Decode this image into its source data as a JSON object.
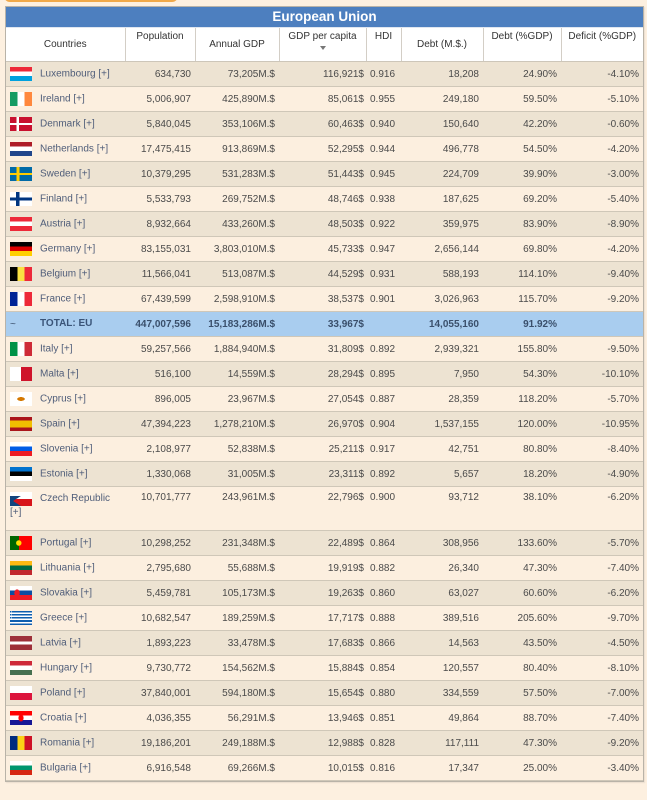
{
  "title": "European Union",
  "columns": [
    {
      "key": "country",
      "label": "Countries"
    },
    {
      "key": "population",
      "label": "Population"
    },
    {
      "key": "annual_gdp",
      "label": "Annual GDP"
    },
    {
      "key": "gdp_per_capita",
      "label": "GDP per capita",
      "sorted": "descending"
    },
    {
      "key": "hdi",
      "label": "HDI"
    },
    {
      "key": "debt",
      "label": "Debt (M.$.)"
    },
    {
      "key": "debt_pct",
      "label": "Debt (%GDP)"
    },
    {
      "key": "deficit",
      "label": "Deficit (%GDP)"
    }
  ],
  "rows": [
    {
      "country": "Luxembourg [+]",
      "flag": "luxembourg-flag",
      "population": "634,730",
      "annual_gdp": "73,205M.$",
      "gdp_per_capita": "116,921$",
      "hdi": "0.916",
      "debt": "18,208",
      "debt_pct": "24.90%",
      "deficit": "-4.10%"
    },
    {
      "country": "Ireland [+]",
      "flag": "ireland-flag",
      "population": "5,006,907",
      "annual_gdp": "425,890M.$",
      "gdp_per_capita": "85,061$",
      "hdi": "0.955",
      "debt": "249,180",
      "debt_pct": "59.50%",
      "deficit": "-5.10%"
    },
    {
      "country": "Denmark [+]",
      "flag": "denmark-flag",
      "population": "5,840,045",
      "annual_gdp": "353,106M.$",
      "gdp_per_capita": "60,463$",
      "hdi": "0.940",
      "debt": "150,640",
      "debt_pct": "42.20%",
      "deficit": "-0.60%"
    },
    {
      "country": "Netherlands [+]",
      "flag": "netherlands-flag",
      "population": "17,475,415",
      "annual_gdp": "913,869M.$",
      "gdp_per_capita": "52,295$",
      "hdi": "0.944",
      "debt": "496,778",
      "debt_pct": "54.50%",
      "deficit": "-4.20%"
    },
    {
      "country": "Sweden [+]",
      "flag": "sweden-flag",
      "population": "10,379,295",
      "annual_gdp": "531,283M.$",
      "gdp_per_capita": "51,443$",
      "hdi": "0.945",
      "debt": "224,709",
      "debt_pct": "39.90%",
      "deficit": "-3.00%"
    },
    {
      "country": "Finland [+]",
      "flag": "finland-flag",
      "population": "5,533,793",
      "annual_gdp": "269,752M.$",
      "gdp_per_capita": "48,746$",
      "hdi": "0.938",
      "debt": "187,625",
      "debt_pct": "69.20%",
      "deficit": "-5.40%"
    },
    {
      "country": "Austria [+]",
      "flag": "austria-flag",
      "population": "8,932,664",
      "annual_gdp": "433,260M.$",
      "gdp_per_capita": "48,503$",
      "hdi": "0.922",
      "debt": "359,975",
      "debt_pct": "83.90%",
      "deficit": "-8.90%"
    },
    {
      "country": "Germany [+]",
      "flag": "germany-flag",
      "population": "83,155,031",
      "annual_gdp": "3,803,010M.$",
      "gdp_per_capita": "45,733$",
      "hdi": "0.947",
      "debt": "2,656,144",
      "debt_pct": "69.80%",
      "deficit": "-4.20%"
    },
    {
      "country": "Belgium [+]",
      "flag": "belgium-flag",
      "population": "11,566,041",
      "annual_gdp": "513,087M.$",
      "gdp_per_capita": "44,529$",
      "hdi": "0.931",
      "debt": "588,193",
      "debt_pct": "114.10%",
      "deficit": "-9.40%"
    },
    {
      "country": "France [+]",
      "flag": "france-flag",
      "population": "67,439,599",
      "annual_gdp": "2,598,910M.$",
      "gdp_per_capita": "38,537$",
      "hdi": "0.901",
      "debt": "3,026,963",
      "debt_pct": "115.70%",
      "deficit": "-9.20%"
    },
    {
      "total": true,
      "marker": "~",
      "country": "TOTAL: EU",
      "population": "447,007,596",
      "annual_gdp": "15,183,286M.$",
      "gdp_per_capita": "33,967$",
      "hdi": "",
      "debt": "14,055,160",
      "debt_pct": "91.92%",
      "deficit": ""
    },
    {
      "country": "Italy [+]",
      "flag": "italy-flag",
      "population": "59,257,566",
      "annual_gdp": "1,884,940M.$",
      "gdp_per_capita": "31,809$",
      "hdi": "0.892",
      "debt": "2,939,321",
      "debt_pct": "155.80%",
      "deficit": "-9.50%"
    },
    {
      "country": "Malta [+]",
      "flag": "malta-flag",
      "population": "516,100",
      "annual_gdp": "14,559M.$",
      "gdp_per_capita": "28,294$",
      "hdi": "0.895",
      "debt": "7,950",
      "debt_pct": "54.30%",
      "deficit": "-10.10%"
    },
    {
      "country": "Cyprus [+]",
      "flag": "cyprus-flag",
      "population": "896,005",
      "annual_gdp": "23,967M.$",
      "gdp_per_capita": "27,054$",
      "hdi": "0.887",
      "debt": "28,359",
      "debt_pct": "118.20%",
      "deficit": "-5.70%"
    },
    {
      "country": "Spain [+]",
      "flag": "spain-flag",
      "population": "47,394,223",
      "annual_gdp": "1,278,210M.$",
      "gdp_per_capita": "26,970$",
      "hdi": "0.904",
      "debt": "1,537,155",
      "debt_pct": "120.00%",
      "deficit": "-10.95%"
    },
    {
      "country": "Slovenia [+]",
      "flag": "slovenia-flag",
      "population": "2,108,977",
      "annual_gdp": "52,838M.$",
      "gdp_per_capita": "25,211$",
      "hdi": "0.917",
      "debt": "42,751",
      "debt_pct": "80.80%",
      "deficit": "-8.40%"
    },
    {
      "country": "Estonia [+]",
      "flag": "estonia-flag",
      "population": "1,330,068",
      "annual_gdp": "31,005M.$",
      "gdp_per_capita": "23,311$",
      "hdi": "0.892",
      "debt": "5,657",
      "debt_pct": "18.20%",
      "deficit": "-4.90%"
    },
    {
      "country": "Czech Republic [+]",
      "flag": "czech-republic-flag",
      "tall": true,
      "population": "10,701,777",
      "annual_gdp": "243,961M.$",
      "gdp_per_capita": "22,796$",
      "hdi": "0.900",
      "debt": "93,712",
      "debt_pct": "38.10%",
      "deficit": "-6.20%"
    },
    {
      "country": "Portugal [+]",
      "flag": "portugal-flag",
      "population": "10,298,252",
      "annual_gdp": "231,348M.$",
      "gdp_per_capita": "22,489$",
      "hdi": "0.864",
      "debt": "308,956",
      "debt_pct": "133.60%",
      "deficit": "-5.70%"
    },
    {
      "country": "Lithuania [+]",
      "flag": "lithuania-flag",
      "population": "2,795,680",
      "annual_gdp": "55,688M.$",
      "gdp_per_capita": "19,919$",
      "hdi": "0.882",
      "debt": "26,340",
      "debt_pct": "47.30%",
      "deficit": "-7.40%"
    },
    {
      "country": "Slovakia [+]",
      "flag": "slovakia-flag",
      "population": "5,459,781",
      "annual_gdp": "105,173M.$",
      "gdp_per_capita": "19,263$",
      "hdi": "0.860",
      "debt": "63,027",
      "debt_pct": "60.60%",
      "deficit": "-6.20%"
    },
    {
      "country": "Greece [+]",
      "flag": "greece-flag",
      "population": "10,682,547",
      "annual_gdp": "189,259M.$",
      "gdp_per_capita": "17,717$",
      "hdi": "0.888",
      "debt": "389,516",
      "debt_pct": "205.60%",
      "deficit": "-9.70%"
    },
    {
      "country": "Latvia [+]",
      "flag": "latvia-flag",
      "population": "1,893,223",
      "annual_gdp": "33,478M.$",
      "gdp_per_capita": "17,683$",
      "hdi": "0.866",
      "debt": "14,563",
      "debt_pct": "43.50%",
      "deficit": "-4.50%"
    },
    {
      "country": "Hungary [+]",
      "flag": "hungary-flag",
      "population": "9,730,772",
      "annual_gdp": "154,562M.$",
      "gdp_per_capita": "15,884$",
      "hdi": "0.854",
      "debt": "120,557",
      "debt_pct": "80.40%",
      "deficit": "-8.10%"
    },
    {
      "country": "Poland [+]",
      "flag": "poland-flag",
      "population": "37,840,001",
      "annual_gdp": "594,180M.$",
      "gdp_per_capita": "15,654$",
      "hdi": "0.880",
      "debt": "334,559",
      "debt_pct": "57.50%",
      "deficit": "-7.00%"
    },
    {
      "country": "Croatia [+]",
      "flag": "croatia-flag",
      "population": "4,036,355",
      "annual_gdp": "56,291M.$",
      "gdp_per_capita": "13,946$",
      "hdi": "0.851",
      "debt": "49,864",
      "debt_pct": "88.70%",
      "deficit": "-7.40%"
    },
    {
      "country": "Romania [+]",
      "flag": "romania-flag",
      "population": "19,186,201",
      "annual_gdp": "249,188M.$",
      "gdp_per_capita": "12,988$",
      "hdi": "0.828",
      "debt": "117,111",
      "debt_pct": "47.30%",
      "deficit": "-9.20%"
    },
    {
      "country": "Bulgaria [+]",
      "flag": "bulgaria-flag",
      "population": "6,916,548",
      "annual_gdp": "69,266M.$",
      "gdp_per_capita": "10,015$",
      "hdi": "0.816",
      "debt": "17,347",
      "debt_pct": "25.00%",
      "deficit": "-3.40%"
    }
  ],
  "colors": {
    "title_bar": "#4d7fbf",
    "row_odd": "#ede3d2",
    "row_even": "#fcefdf",
    "total_row": "#a9cdef",
    "page_background": "#fdf0e0",
    "link_text": "#4f5d79"
  }
}
